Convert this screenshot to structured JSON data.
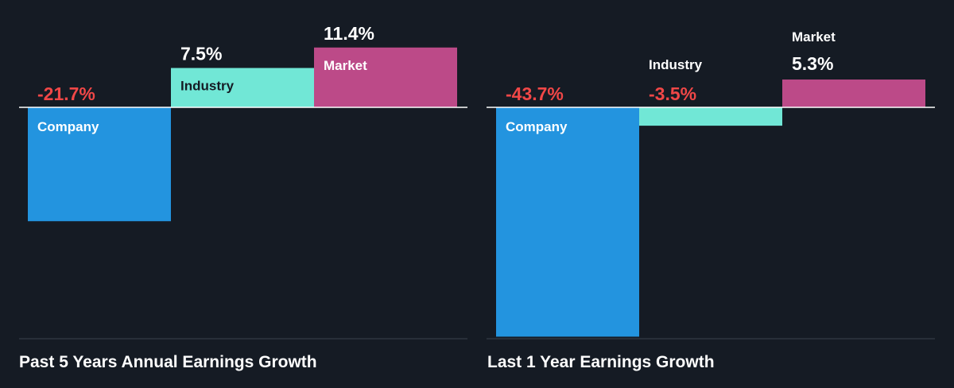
{
  "colors": {
    "background": "#151b24",
    "company": "#2394df",
    "industry": "#71e7d6",
    "market": "#bc4a88",
    "positive_text": "#ffffff",
    "negative_text": "#f04747",
    "bar_label": "#ffffff",
    "industry_label": "#151b24"
  },
  "chart_data": [
    {
      "type": "bar",
      "title": "Past 5 Years Annual Earnings Growth",
      "categories": [
        "Company",
        "Industry",
        "Market"
      ],
      "values": [
        -21.7,
        7.5,
        11.4
      ],
      "value_labels": [
        "-21.7%",
        "7.5%",
        "11.4%"
      ],
      "unit": "%",
      "xlabel": "",
      "ylabel": "",
      "ylim": [
        -45,
        11.4
      ],
      "grid": false,
      "legend": "none"
    },
    {
      "type": "bar",
      "title": "Last 1 Year Earnings Growth",
      "categories": [
        "Company",
        "Industry",
        "Market"
      ],
      "values": [
        -43.7,
        -3.5,
        5.3
      ],
      "value_labels": [
        "-43.7%",
        "-3.5%",
        "5.3%"
      ],
      "unit": "%",
      "xlabel": "",
      "ylabel": "",
      "ylim": [
        -43.7,
        5.3
      ],
      "grid": false,
      "legend": "none"
    }
  ]
}
